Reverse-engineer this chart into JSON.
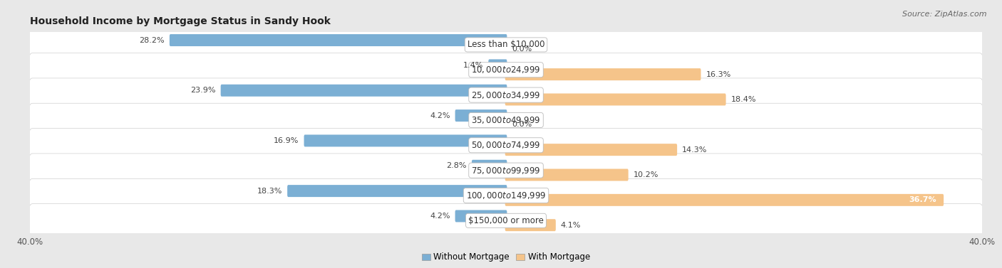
{
  "title": "Household Income by Mortgage Status in Sandy Hook",
  "source": "Source: ZipAtlas.com",
  "categories": [
    "Less than $10,000",
    "$10,000 to $24,999",
    "$25,000 to $34,999",
    "$35,000 to $49,999",
    "$50,000 to $74,999",
    "$75,000 to $99,999",
    "$100,000 to $149,999",
    "$150,000 or more"
  ],
  "without_mortgage": [
    28.2,
    1.4,
    23.9,
    4.2,
    16.9,
    2.8,
    18.3,
    4.2
  ],
  "with_mortgage": [
    0.0,
    16.3,
    18.4,
    0.0,
    14.3,
    10.2,
    36.7,
    4.1
  ],
  "color_without": "#7bafd4",
  "color_with": "#f5c48a",
  "color_without_dark": "#5a9abf",
  "color_with_dark": "#e8a857",
  "axis_max": 40.0,
  "bg_outer": "#e8e8e8",
  "bg_row": "#f5f5f5",
  "legend_label_without": "Without Mortgage",
  "legend_label_with": "With Mortgage",
  "title_fontsize": 10,
  "source_fontsize": 8,
  "label_fontsize": 8.5,
  "value_fontsize": 8,
  "axis_label_fontsize": 8.5
}
